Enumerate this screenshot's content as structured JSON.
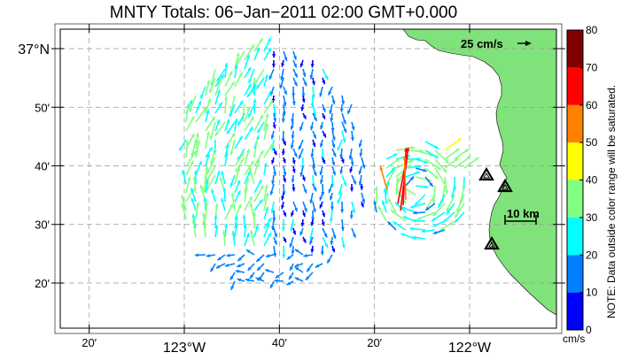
{
  "title": "MNTY Totals: 06−Jan−2011 02:00 GMT+0.000",
  "map": {
    "lat_ticks": [
      {
        "value": 37.0,
        "label": "37°N"
      },
      {
        "value": 36.8333,
        "label": "50′"
      },
      {
        "value": 36.6667,
        "label": "40′"
      },
      {
        "value": 36.5,
        "label": "30′"
      },
      {
        "value": 36.3333,
        "label": "20′"
      }
    ],
    "lon_ticks": [
      {
        "value": -123.3333,
        "label": "20′"
      },
      {
        "value": -123.0,
        "label": "123°W"
      },
      {
        "value": -122.6667,
        "label": "40′"
      },
      {
        "value": -122.3333,
        "label": "20′"
      },
      {
        "value": -122.0,
        "label": "122°W"
      }
    ],
    "grid": true,
    "land_color": "#80e27a",
    "ocean_color": "#ffffff"
  },
  "scale_arrow": {
    "label": "25 cm/s"
  },
  "scale_bar": {
    "label": "10 km"
  },
  "stations": [
    "radar-site-1",
    "radar-site-2",
    "radar-site-3"
  ],
  "colorbar": {
    "ticks": [
      "0",
      "10",
      "20",
      "30",
      "40",
      "50",
      "60",
      "70",
      "80"
    ],
    "colors": [
      "#0000ff",
      "#0080ff",
      "#00ffff",
      "#80ff80",
      "#ffff00",
      "#ff8000",
      "#ff0000",
      "#800000"
    ],
    "unit": "cm/s",
    "note": "NOTE: Data outside color range will be saturated."
  }
}
